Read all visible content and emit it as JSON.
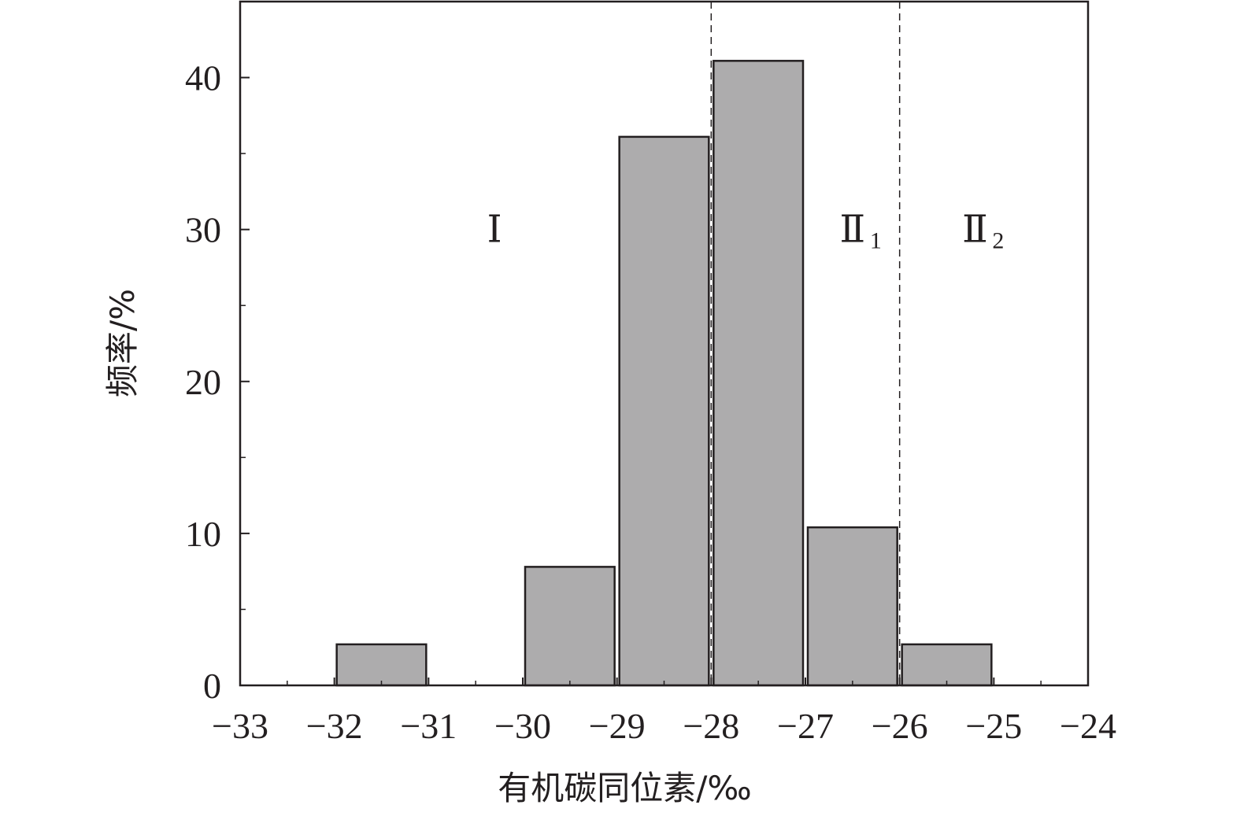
{
  "chart_data": {
    "type": "bar",
    "xlabel": "有机碳同位素/‰",
    "ylabel": "频率/%",
    "xlim": [
      -33,
      -24
    ],
    "ylim": [
      0,
      45
    ],
    "xticks": [
      -33,
      -32,
      -31,
      -30,
      -29,
      -28,
      -27,
      -26,
      -25,
      -24
    ],
    "xtick_labels": [
      "−33",
      "−32",
      "−31",
      "−30",
      "−29",
      "−28",
      "−27",
      "−26",
      "−25",
      "−24"
    ],
    "yticks": [
      0,
      10,
      20,
      30,
      40
    ],
    "ytick_labels": [
      "0",
      "10",
      "20",
      "30",
      "40"
    ],
    "grid": false,
    "bars": [
      {
        "x0": -32,
        "x1": -31,
        "value": 2.7
      },
      {
        "x0": -30,
        "x1": -29,
        "value": 7.8
      },
      {
        "x0": -29,
        "x1": -28,
        "value": 36.1
      },
      {
        "x0": -28,
        "x1": -27,
        "value": 41.1
      },
      {
        "x0": -27,
        "x1": -26,
        "value": 10.4
      },
      {
        "x0": -26,
        "x1": -25,
        "value": 2.7
      }
    ],
    "bar_color": "#adacad",
    "divider_lines": [
      -28,
      -26
    ],
    "regions": [
      {
        "label": "Ⅰ",
        "sub": "",
        "x": -30.3,
        "y": 30
      },
      {
        "label": "Ⅱ",
        "sub": "1",
        "x": -26.5,
        "y": 30
      },
      {
        "label": "Ⅱ",
        "sub": "2",
        "x": -25.2,
        "y": 30
      }
    ]
  }
}
